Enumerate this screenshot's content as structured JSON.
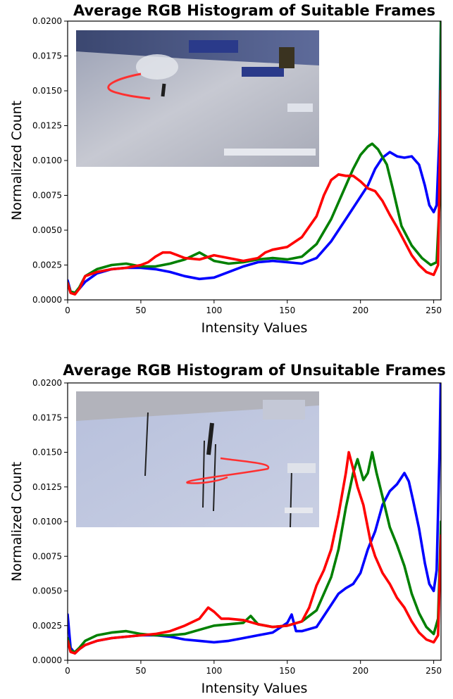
{
  "chart_data": [
    {
      "type": "line",
      "title": "Average RGB Histogram of Suitable Frames",
      "xlabel": "Intensity Values",
      "ylabel": "Normalized Count",
      "xlim": [
        0,
        255
      ],
      "ylim": [
        0,
        0.02
      ],
      "xticks": [
        "0",
        "50",
        "100",
        "150",
        "200",
        "250"
      ],
      "yticks": [
        "0.0000",
        "0.0025",
        "0.0050",
        "0.0075",
        "0.0100",
        "0.0125",
        "0.0150",
        "0.0175",
        "0.0200"
      ],
      "inset": "ski-racer-photo",
      "series": [
        {
          "color": "#0000ff",
          "points": [
            [
              0,
              0.0014
            ],
            [
              2,
              0.0006
            ],
            [
              5,
              0.0005
            ],
            [
              8,
              0.0008
            ],
            [
              12,
              0.0013
            ],
            [
              20,
              0.0019
            ],
            [
              30,
              0.0022
            ],
            [
              40,
              0.0023
            ],
            [
              50,
              0.0023
            ],
            [
              60,
              0.0022
            ],
            [
              70,
              0.002
            ],
            [
              80,
              0.0017
            ],
            [
              90,
              0.0015
            ],
            [
              100,
              0.0016
            ],
            [
              110,
              0.002
            ],
            [
              120,
              0.0024
            ],
            [
              130,
              0.0027
            ],
            [
              140,
              0.0028
            ],
            [
              150,
              0.0027
            ],
            [
              160,
              0.0026
            ],
            [
              170,
              0.003
            ],
            [
              180,
              0.0042
            ],
            [
              190,
              0.0058
            ],
            [
              200,
              0.0074
            ],
            [
              205,
              0.0082
            ],
            [
              210,
              0.0094
            ],
            [
              215,
              0.0102
            ],
            [
              220,
              0.0106
            ],
            [
              225,
              0.0103
            ],
            [
              230,
              0.0102
            ],
            [
              235,
              0.0103
            ],
            [
              240,
              0.0097
            ],
            [
              244,
              0.0082
            ],
            [
              247,
              0.0068
            ],
            [
              250,
              0.0063
            ],
            [
              252,
              0.0068
            ],
            [
              254,
              0.012
            ],
            [
              255,
              0.021
            ]
          ]
        },
        {
          "color": "#008000",
          "points": [
            [
              0,
              0.0012
            ],
            [
              2,
              0.0006
            ],
            [
              5,
              0.0005
            ],
            [
              8,
              0.0009
            ],
            [
              12,
              0.0017
            ],
            [
              20,
              0.0022
            ],
            [
              30,
              0.0025
            ],
            [
              40,
              0.0026
            ],
            [
              50,
              0.0024
            ],
            [
              60,
              0.0024
            ],
            [
              70,
              0.0026
            ],
            [
              80,
              0.0029
            ],
            [
              90,
              0.0034
            ],
            [
              95,
              0.0031
            ],
            [
              100,
              0.0028
            ],
            [
              110,
              0.0026
            ],
            [
              120,
              0.0027
            ],
            [
              130,
              0.0029
            ],
            [
              140,
              0.003
            ],
            [
              150,
              0.0029
            ],
            [
              160,
              0.0031
            ],
            [
              170,
              0.004
            ],
            [
              180,
              0.0058
            ],
            [
              190,
              0.0082
            ],
            [
              195,
              0.0094
            ],
            [
              200,
              0.0104
            ],
            [
              205,
              0.011
            ],
            [
              208,
              0.0112
            ],
            [
              212,
              0.0108
            ],
            [
              218,
              0.0097
            ],
            [
              222,
              0.008
            ],
            [
              228,
              0.0053
            ],
            [
              235,
              0.0039
            ],
            [
              242,
              0.003
            ],
            [
              248,
              0.0025
            ],
            [
              252,
              0.0027
            ],
            [
              254,
              0.007
            ],
            [
              255,
              0.021
            ]
          ]
        },
        {
          "color": "#ff0000",
          "points": [
            [
              0,
              0.0012
            ],
            [
              2,
              0.0005
            ],
            [
              5,
              0.0004
            ],
            [
              8,
              0.0008
            ],
            [
              12,
              0.0017
            ],
            [
              20,
              0.002
            ],
            [
              30,
              0.0022
            ],
            [
              40,
              0.0023
            ],
            [
              50,
              0.0025
            ],
            [
              55,
              0.0027
            ],
            [
              60,
              0.0031
            ],
            [
              65,
              0.0034
            ],
            [
              70,
              0.0034
            ],
            [
              75,
              0.0032
            ],
            [
              80,
              0.003
            ],
            [
              90,
              0.0029
            ],
            [
              100,
              0.0032
            ],
            [
              110,
              0.003
            ],
            [
              120,
              0.0028
            ],
            [
              130,
              0.003
            ],
            [
              135,
              0.0034
            ],
            [
              140,
              0.0036
            ],
            [
              150,
              0.0038
            ],
            [
              160,
              0.0045
            ],
            [
              170,
              0.006
            ],
            [
              175,
              0.0075
            ],
            [
              180,
              0.0086
            ],
            [
              185,
              0.009
            ],
            [
              190,
              0.0089
            ],
            [
              195,
              0.0089
            ],
            [
              200,
              0.0085
            ],
            [
              205,
              0.008
            ],
            [
              210,
              0.0078
            ],
            [
              215,
              0.0071
            ],
            [
              220,
              0.0061
            ],
            [
              225,
              0.0052
            ],
            [
              230,
              0.0042
            ],
            [
              235,
              0.0032
            ],
            [
              240,
              0.0025
            ],
            [
              245,
              0.002
            ],
            [
              250,
              0.0018
            ],
            [
              253,
              0.0025
            ],
            [
              255,
              0.015
            ]
          ]
        }
      ]
    },
    {
      "type": "line",
      "title": "Average RGB Histogram of Unsuitable Frames",
      "xlabel": "Intensity Values",
      "ylabel": "Normalized Count",
      "xlim": [
        0,
        255
      ],
      "ylim": [
        0,
        0.02
      ],
      "xticks": [
        "0",
        "50",
        "100",
        "150",
        "200",
        "250"
      ],
      "yticks": [
        "0.0000",
        "0.0025",
        "0.0050",
        "0.0075",
        "0.0100",
        "0.0125",
        "0.0150",
        "0.0175",
        "0.0200"
      ],
      "inset": "ski-racer-photo",
      "series": [
        {
          "color": "#0000ff",
          "points": [
            [
              0,
              0.0033
            ],
            [
              2,
              0.0009
            ],
            [
              5,
              0.0005
            ],
            [
              8,
              0.0008
            ],
            [
              12,
              0.0011
            ],
            [
              20,
              0.0014
            ],
            [
              30,
              0.0016
            ],
            [
              40,
              0.0017
            ],
            [
              50,
              0.0018
            ],
            [
              60,
              0.0018
            ],
            [
              70,
              0.0017
            ],
            [
              80,
              0.0015
            ],
            [
              90,
              0.0014
            ],
            [
              100,
              0.0013
            ],
            [
              110,
              0.0014
            ],
            [
              120,
              0.0016
            ],
            [
              130,
              0.0018
            ],
            [
              140,
              0.002
            ],
            [
              150,
              0.0027
            ],
            [
              153,
              0.0033
            ],
            [
              156,
              0.0021
            ],
            [
              160,
              0.0021
            ],
            [
              170,
              0.0024
            ],
            [
              180,
              0.004
            ],
            [
              185,
              0.0048
            ],
            [
              190,
              0.0052
            ],
            [
              195,
              0.0055
            ],
            [
              200,
              0.0063
            ],
            [
              205,
              0.008
            ],
            [
              210,
              0.0093
            ],
            [
              215,
              0.0112
            ],
            [
              220,
              0.0122
            ],
            [
              225,
              0.0127
            ],
            [
              230,
              0.0135
            ],
            [
              233,
              0.0129
            ],
            [
              236,
              0.0115
            ],
            [
              240,
              0.0095
            ],
            [
              244,
              0.007
            ],
            [
              247,
              0.0055
            ],
            [
              250,
              0.005
            ],
            [
              252,
              0.0065
            ],
            [
              254,
              0.015
            ],
            [
              255,
              0.0215
            ]
          ]
        },
        {
          "color": "#008000",
          "points": [
            [
              0,
              0.0016
            ],
            [
              2,
              0.0007
            ],
            [
              5,
              0.0006
            ],
            [
              8,
              0.0009
            ],
            [
              12,
              0.0014
            ],
            [
              20,
              0.0018
            ],
            [
              30,
              0.002
            ],
            [
              40,
              0.0021
            ],
            [
              50,
              0.0019
            ],
            [
              60,
              0.0018
            ],
            [
              70,
              0.0018
            ],
            [
              80,
              0.0019
            ],
            [
              90,
              0.0022
            ],
            [
              100,
              0.0025
            ],
            [
              110,
              0.0026
            ],
            [
              120,
              0.0027
            ],
            [
              125,
              0.0032
            ],
            [
              130,
              0.0026
            ],
            [
              140,
              0.0024
            ],
            [
              150,
              0.0025
            ],
            [
              160,
              0.0028
            ],
            [
              170,
              0.0036
            ],
            [
              180,
              0.006
            ],
            [
              185,
              0.008
            ],
            [
              190,
              0.011
            ],
            [
              195,
              0.0135
            ],
            [
              198,
              0.0145
            ],
            [
              202,
              0.013
            ],
            [
              205,
              0.0135
            ],
            [
              208,
              0.015
            ],
            [
              211,
              0.0135
            ],
            [
              215,
              0.0118
            ],
            [
              220,
              0.0096
            ],
            [
              225,
              0.0083
            ],
            [
              230,
              0.0068
            ],
            [
              235,
              0.0048
            ],
            [
              240,
              0.0034
            ],
            [
              245,
              0.0024
            ],
            [
              250,
              0.0019
            ],
            [
              253,
              0.003
            ],
            [
              255,
              0.01
            ]
          ]
        },
        {
          "color": "#ff0000",
          "points": [
            [
              0,
              0.0014
            ],
            [
              2,
              0.0006
            ],
            [
              5,
              0.0005
            ],
            [
              8,
              0.0008
            ],
            [
              12,
              0.0011
            ],
            [
              20,
              0.0014
            ],
            [
              30,
              0.0016
            ],
            [
              40,
              0.0017
            ],
            [
              50,
              0.0018
            ],
            [
              60,
              0.0019
            ],
            [
              70,
              0.0021
            ],
            [
              80,
              0.0025
            ],
            [
              90,
              0.003
            ],
            [
              96,
              0.0038
            ],
            [
              100,
              0.0035
            ],
            [
              105,
              0.003
            ],
            [
              110,
              0.003
            ],
            [
              120,
              0.0029
            ],
            [
              130,
              0.0026
            ],
            [
              140,
              0.0024
            ],
            [
              150,
              0.0025
            ],
            [
              160,
              0.0028
            ],
            [
              165,
              0.0038
            ],
            [
              170,
              0.0054
            ],
            [
              175,
              0.0065
            ],
            [
              180,
              0.008
            ],
            [
              185,
              0.0105
            ],
            [
              190,
              0.0135
            ],
            [
              192,
              0.015
            ],
            [
              195,
              0.0138
            ],
            [
              198,
              0.0125
            ],
            [
              202,
              0.0112
            ],
            [
              207,
              0.0085
            ],
            [
              210,
              0.0075
            ],
            [
              215,
              0.0063
            ],
            [
              220,
              0.0055
            ],
            [
              225,
              0.0045
            ],
            [
              230,
              0.0038
            ],
            [
              235,
              0.0028
            ],
            [
              240,
              0.002
            ],
            [
              245,
              0.0015
            ],
            [
              250,
              0.0013
            ],
            [
              253,
              0.0018
            ],
            [
              255,
              0.009
            ]
          ]
        }
      ]
    }
  ]
}
